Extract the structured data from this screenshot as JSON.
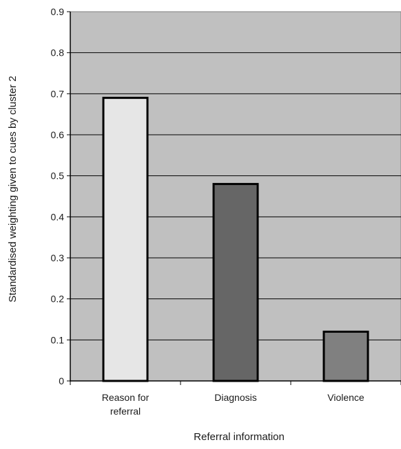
{
  "chart_data": {
    "type": "bar",
    "title": "",
    "xlabel": "Referral information",
    "ylabel": "Standardised weighting given to cues by cluster 2",
    "categories": [
      [
        "Reason for",
        "referral"
      ],
      [
        "Diagnosis"
      ],
      [
        "Violence"
      ]
    ],
    "values": [
      0.69,
      0.48,
      0.12
    ],
    "ylim": [
      0,
      0.9
    ],
    "yticks": [
      "0",
      "0.1",
      "0.2",
      "0.3",
      "0.4",
      "0.5",
      "0.6",
      "0.7",
      "0.8",
      "0.9"
    ],
    "grid": true,
    "legend": "none",
    "bar_colors": [
      "#e6e6e6",
      "#666666",
      "#808080"
    ],
    "plot_background": "#c0c0c0"
  }
}
